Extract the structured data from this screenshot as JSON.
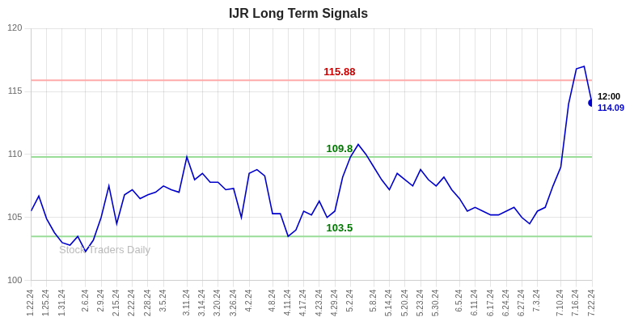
{
  "chart_data": {
    "type": "line",
    "title": "IJR Long Term Signals",
    "categories": [
      "1.22.24",
      null,
      "1.25.24",
      null,
      "1.31.24",
      null,
      null,
      "2.6.24",
      null,
      "2.9.24",
      null,
      "2.15.24",
      null,
      "2.22.24",
      null,
      "2.28.24",
      null,
      "3.5.24",
      null,
      null,
      "3.11.24",
      null,
      "3.14.24",
      null,
      "3.20.24",
      null,
      "3.26.24",
      null,
      "4.2.24",
      null,
      null,
      "4.8.24",
      null,
      "4.11.24",
      null,
      "4.17.24",
      null,
      "4.23.24",
      null,
      "4.29.24",
      null,
      "5.2.24",
      null,
      null,
      "5.8.24",
      null,
      "5.14.24",
      null,
      "5.20.24",
      null,
      "5.23.24",
      null,
      "5.30.24",
      null,
      null,
      "6.5.24",
      null,
      "6.11.24",
      null,
      "6.17.24",
      null,
      "6.24.24",
      null,
      "6.27.24",
      null,
      "7.3.24",
      null,
      null,
      "7.10.24",
      null,
      "7.16.24",
      null,
      "7.22.24"
    ],
    "values": [
      105.5,
      106.7,
      104.9,
      103.8,
      103.0,
      102.8,
      103.5,
      102.3,
      103.2,
      105.0,
      107.5,
      104.5,
      106.8,
      107.2,
      106.5,
      106.8,
      107.0,
      107.5,
      107.2,
      107.0,
      109.8,
      108.0,
      108.5,
      107.8,
      107.8,
      107.2,
      107.3,
      105.0,
      108.5,
      108.8,
      108.3,
      105.3,
      105.3,
      103.5,
      104.0,
      105.5,
      105.2,
      106.3,
      105.0,
      105.5,
      108.2,
      109.8,
      110.8,
      110.0,
      109.0,
      108.0,
      107.2,
      108.5,
      108.0,
      107.5,
      108.8,
      108.0,
      107.5,
      108.2,
      107.2,
      106.5,
      105.5,
      105.8,
      105.5,
      105.2,
      105.2,
      105.5,
      105.8,
      105.0,
      104.5,
      105.5,
      105.8,
      107.5,
      109.0,
      114.0,
      116.8,
      117.0,
      114.09
    ],
    "color": "#0000cc",
    "ylim": [
      100,
      120
    ],
    "yticks": [
      100,
      105,
      110,
      115,
      120
    ],
    "grid": true,
    "hlines": [
      {
        "value": 115.88,
        "color": "#ffaaaa"
      },
      {
        "value": 109.8,
        "color": "#99dd99"
      },
      {
        "value": 103.5,
        "color": "#99dd99"
      }
    ],
    "annotations": [
      {
        "text": "115.88",
        "y": 115.88,
        "color": "#cc0000"
      },
      {
        "text": "109.8",
        "y": 109.8,
        "color": "#007700"
      },
      {
        "text": "103.5",
        "y": 103.5,
        "color": "#007700"
      },
      {
        "text": "12:00",
        "x": "7.22.24",
        "y": 114.09,
        "color": "#000000"
      },
      {
        "text": "114.09",
        "x": "7.22.24",
        "y": 114.09,
        "color": "#0000cc"
      }
    ],
    "watermark": {
      "text": "Stock Traders Daily",
      "color": "#bbbbbb"
    }
  }
}
